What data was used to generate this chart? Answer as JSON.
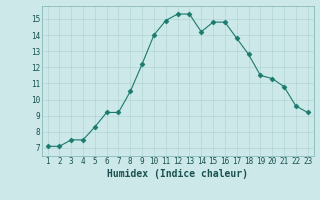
{
  "x": [
    1,
    2,
    3,
    4,
    5,
    6,
    7,
    8,
    9,
    10,
    11,
    12,
    13,
    14,
    15,
    16,
    17,
    18,
    19,
    20,
    21,
    22,
    23
  ],
  "y": [
    7.1,
    7.1,
    7.5,
    7.5,
    8.3,
    9.2,
    9.2,
    10.5,
    12.2,
    14.0,
    14.9,
    15.3,
    15.3,
    14.2,
    14.8,
    14.8,
    13.8,
    12.8,
    11.5,
    11.3,
    10.8,
    9.6,
    9.2
  ],
  "xlabel": "Humidex (Indice chaleur)",
  "xlim": [
    0.5,
    23.5
  ],
  "ylim": [
    6.5,
    15.8
  ],
  "yticks": [
    7,
    8,
    9,
    10,
    11,
    12,
    13,
    14,
    15
  ],
  "xticks": [
    1,
    2,
    3,
    4,
    5,
    6,
    7,
    8,
    9,
    10,
    11,
    12,
    13,
    14,
    15,
    16,
    17,
    18,
    19,
    20,
    21,
    22,
    23
  ],
  "xtick_labels": [
    "1",
    "2",
    "3",
    "4",
    "5",
    "6",
    "7",
    "8",
    "9",
    "10",
    "11",
    "12",
    "13",
    "14",
    "15",
    "16",
    "17",
    "18",
    "19",
    "20",
    "21",
    "22",
    "23"
  ],
  "line_color": "#1a7a6e",
  "marker": "D",
  "marker_size": 2.5,
  "bg_color": "#cce8e8",
  "grid_color": "#b8d8d8",
  "plot_bg": "#cce8e8",
  "tick_color": "#1a5050",
  "label_color": "#1a5050",
  "xlabel_fontsize": 7,
  "tick_fontsize": 5.5
}
